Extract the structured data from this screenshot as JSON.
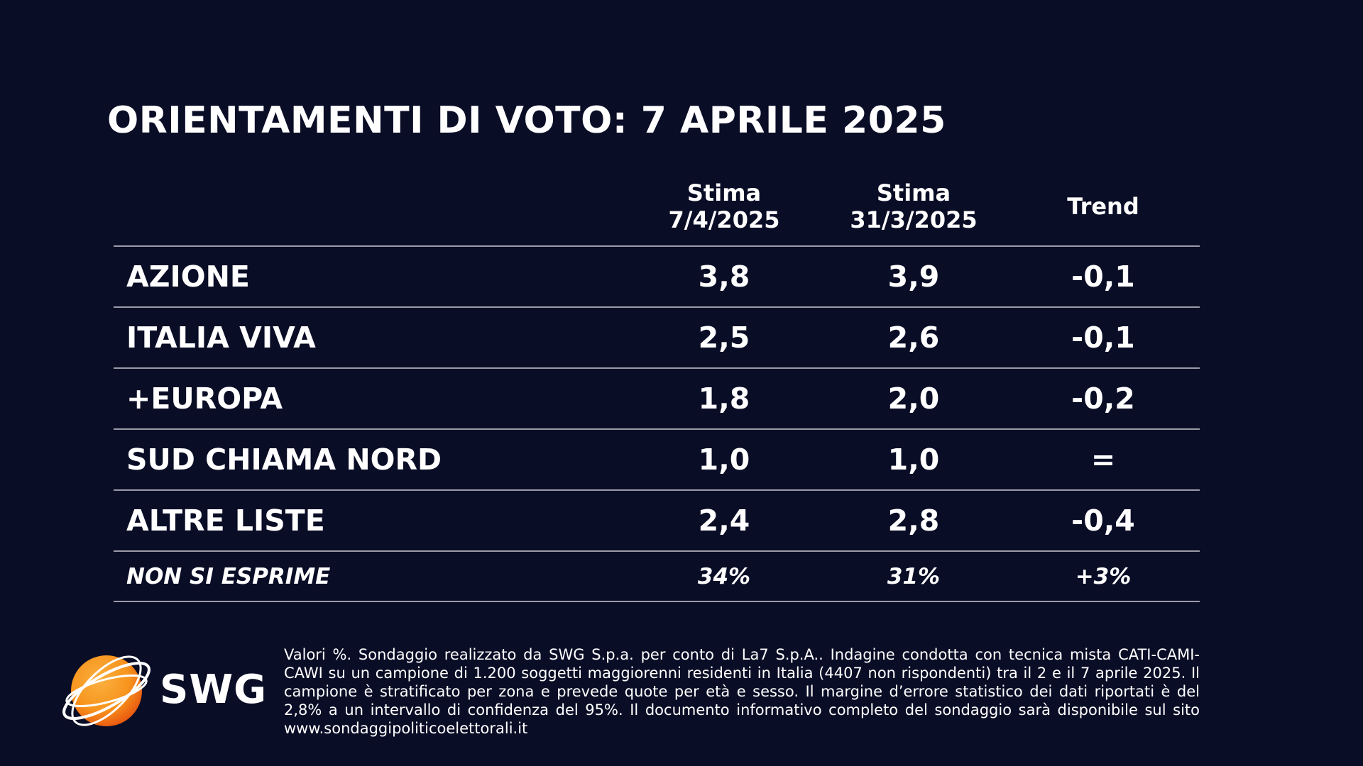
{
  "chart_data": {
    "type": "table",
    "title": "ORIENTAMENTI DI VOTO: 7 APRILE 2025",
    "columns": [
      {
        "line1": "Stima",
        "line2": "7/4/2025"
      },
      {
        "line1": "Stima",
        "line2": "31/3/2025"
      },
      {
        "line1": "Trend",
        "line2": ""
      }
    ],
    "rows": [
      {
        "party": "AZIONE",
        "current": "3,8",
        "previous": "3,9",
        "trend": "-0,1"
      },
      {
        "party": "ITALIA VIVA",
        "current": "2,5",
        "previous": "2,6",
        "trend": "-0,1"
      },
      {
        "party": "+EUROPA",
        "current": "1,8",
        "previous": "2,0",
        "trend": "-0,2"
      },
      {
        "party": "SUD CHIAMA NORD",
        "current": "1,0",
        "previous": "1,0",
        "trend": "="
      },
      {
        "party": "ALTRE LISTE",
        "current": "2,4",
        "previous": "2,8",
        "trend": "-0,4"
      },
      {
        "party": "NON SI ESPRIME",
        "current": "34%",
        "previous": "31%",
        "trend": "+3%"
      }
    ]
  },
  "logo": {
    "text": "SWG",
    "orange": "#f7941d",
    "orange_dark": "#e8540f"
  },
  "footnote": "Valori %. Sondaggio realizzato da SWG S.p.a. per conto di La7 S.p.A.. Indagine condotta con tecnica mista CATI-CAMI-CAWI su un campione di 1.200 soggetti maggiorenni residenti in Italia (4407 non rispondenti) tra il 2 e il 7 aprile 2025. Il campione è stratificato per zona e prevede quote per età e sesso. Il margine d’errore statistico dei dati riportati è del 2,8% a un intervallo di confidenza del 95%. Il documento informativo completo del sondaggio sarà disponibile sul sito www.sondaggipoliticoelettorali.it",
  "colors": {
    "background": "#0a0d26",
    "text": "#ffffff",
    "rule": "#9a9aa8"
  }
}
